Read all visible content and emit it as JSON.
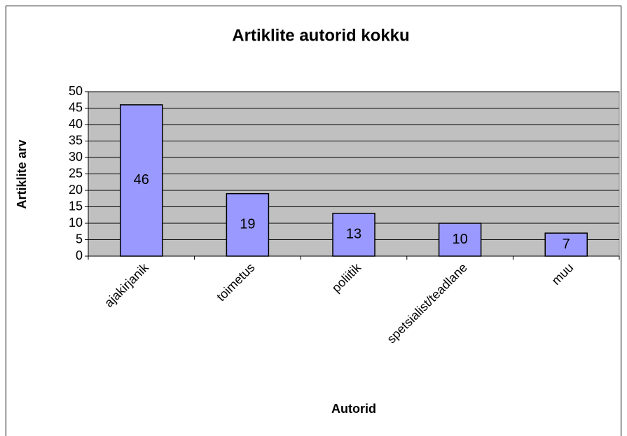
{
  "chart_data": {
    "type": "bar",
    "title": "Artiklite autorid kokku",
    "x_label": "Autorid",
    "y_label": "Artiklite arv",
    "categories": [
      "ajakirjanik",
      "toimetus",
      "poliitik",
      "spetsialist/teadlane",
      "muu"
    ],
    "values": [
      46,
      19,
      13,
      10,
      7
    ],
    "color": "#9999ff",
    "background": "#c0c0c0",
    "ylim": [
      0,
      50
    ],
    "yticks": [
      0,
      5,
      10,
      15,
      20,
      25,
      30,
      35,
      40,
      45,
      50
    ],
    "grid": true
  }
}
